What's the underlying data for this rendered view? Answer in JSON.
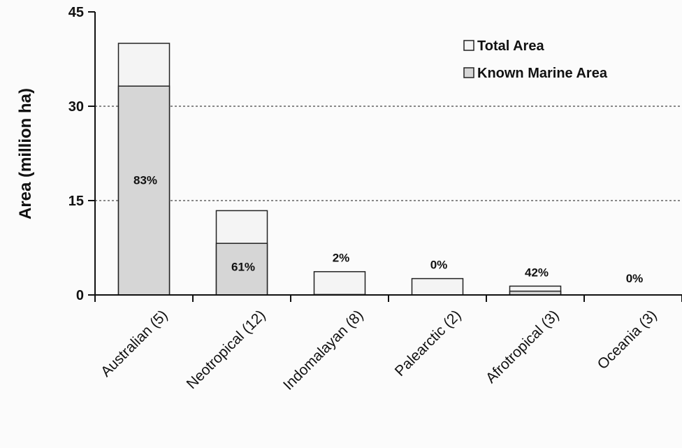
{
  "chart_data": {
    "type": "bar",
    "stacked_overlay": true,
    "title": "",
    "xlabel": "",
    "ylabel": "Area (million ha)",
    "ylim": [
      0,
      45
    ],
    "yticks": [
      0,
      15,
      30,
      45
    ],
    "grid": "horizontal dashed at 15 and 30",
    "legend_position": "top-right",
    "categories": [
      "Australian (5)",
      "Neotropical (12)",
      "Indomalayan (8)",
      "Palearctic (2)",
      "Afrotropical (3)",
      "Oceania (3)"
    ],
    "series": [
      {
        "name": "Total Area",
        "values": [
          40.0,
          13.4,
          3.7,
          2.6,
          1.4,
          0.0
        ],
        "color": "#f4f4f4"
      },
      {
        "name": "Known Marine Area",
        "values": [
          33.2,
          8.2,
          0.07,
          0.0,
          0.6,
          0.0
        ],
        "color": "#d6d6d6"
      }
    ],
    "bar_labels": [
      "83%",
      "61%",
      "2%",
      "0%",
      "42%",
      "0%"
    ]
  }
}
